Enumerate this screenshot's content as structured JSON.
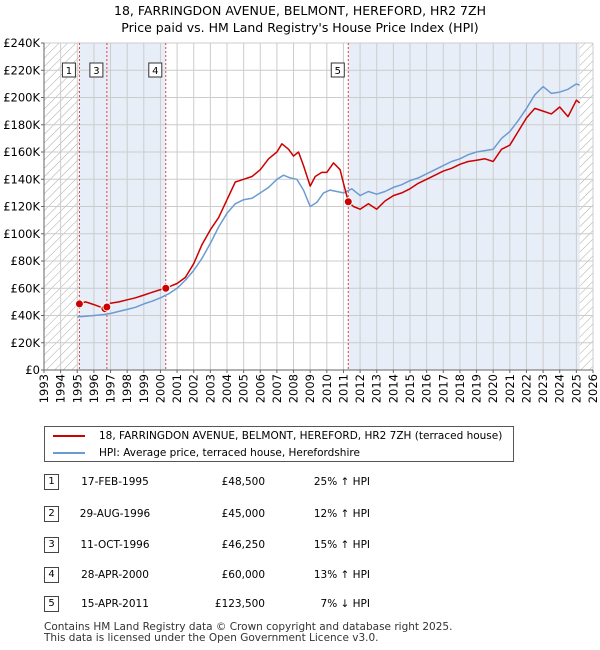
{
  "header": {
    "title_line1": "18, FARRINGDON AVENUE, BELMONT, HEREFORD, HR2 7ZH",
    "title_line2": "Price paid vs. HM Land Registry's House Price Index (HPI)"
  },
  "colors": {
    "price_line": "#cc0000",
    "hpi_line": "#6b9bd2",
    "marker_line": "#dd4444",
    "hatch": "#aaaaaa",
    "shade": "#e8eef8",
    "grid": "#cccccc"
  },
  "chart_data": {
    "type": "line",
    "title": "Price paid vs. HM Land Registry's House Price Index (HPI)",
    "xlim": [
      1993,
      2026
    ],
    "ylim": [
      0,
      240000
    ],
    "x_ticks": [
      "1993",
      "1994",
      "1995",
      "1996",
      "1997",
      "1998",
      "1999",
      "2000",
      "2001",
      "2002",
      "2003",
      "2004",
      "2005",
      "2006",
      "2007",
      "2008",
      "2009",
      "2010",
      "2011",
      "2012",
      "2013",
      "2014",
      "2015",
      "2016",
      "2017",
      "2018",
      "2019",
      "2020",
      "2021",
      "2022",
      "2023",
      "2024",
      "2025",
      "2026"
    ],
    "y_ticks": [
      {
        "value": 0,
        "label": "£0"
      },
      {
        "value": 20000,
        "label": "£20K"
      },
      {
        "value": 40000,
        "label": "£40K"
      },
      {
        "value": 60000,
        "label": "£60K"
      },
      {
        "value": 80000,
        "label": "£80K"
      },
      {
        "value": 100000,
        "label": "£100K"
      },
      {
        "value": 120000,
        "label": "£120K"
      },
      {
        "value": 140000,
        "label": "£140K"
      },
      {
        "value": 160000,
        "label": "£160K"
      },
      {
        "value": 180000,
        "label": "£180K"
      },
      {
        "value": 200000,
        "label": "£200K"
      },
      {
        "value": 220000,
        "label": "£220K"
      },
      {
        "value": 240000,
        "label": "£240K"
      }
    ],
    "hatched_ranges": [
      [
        1993,
        1995.13
      ],
      [
        2025.2,
        2026
      ]
    ],
    "shaded_ranges": [
      [
        1995.13,
        2000.32
      ],
      [
        2011.29,
        2025.2
      ]
    ],
    "series": [
      {
        "name": "18, FARRINGDON AVENUE, BELMONT, HEREFORD, HR2 7ZH (terraced house)",
        "color": "#cc0000",
        "x": [
          1995.13,
          1995.5,
          1996.0,
          1996.66,
          1996.78,
          1997.0,
          1997.5,
          1998.0,
          1998.5,
          1999.0,
          1999.5,
          2000.0,
          2000.32,
          2000.7,
          2001.0,
          2001.5,
          2002.0,
          2002.5,
          2003.0,
          2003.5,
          2004.0,
          2004.5,
          2005.0,
          2005.5,
          2006.0,
          2006.5,
          2007.0,
          2007.3,
          2007.7,
          2008.0,
          2008.3,
          2008.6,
          2009.0,
          2009.3,
          2009.7,
          2010.0,
          2010.4,
          2010.8,
          2011.0,
          2011.29,
          2011.6,
          2012.0,
          2012.5,
          2013.0,
          2013.5,
          2014.0,
          2014.5,
          2015.0,
          2015.5,
          2016.0,
          2016.5,
          2017.0,
          2017.5,
          2018.0,
          2018.5,
          2019.0,
          2019.5,
          2020.0,
          2020.5,
          2021.0,
          2021.5,
          2022.0,
          2022.5,
          2023.0,
          2023.5,
          2024.0,
          2024.5,
          2025.0,
          2025.2
        ],
        "values": [
          48500,
          50000,
          48000,
          45000,
          46250,
          49000,
          50000,
          51500,
          53000,
          55000,
          57000,
          59000,
          60000,
          62000,
          63500,
          68000,
          78000,
          92000,
          103000,
          112000,
          125000,
          138000,
          140000,
          142000,
          147000,
          155000,
          160000,
          166000,
          162000,
          157000,
          160000,
          150000,
          135000,
          142000,
          145000,
          145000,
          152000,
          147000,
          137000,
          123500,
          120000,
          118000,
          122000,
          118000,
          124000,
          128000,
          130000,
          133000,
          137000,
          140000,
          143000,
          146000,
          148000,
          151000,
          153000,
          154000,
          155000,
          153000,
          162000,
          165000,
          175000,
          185000,
          192000,
          190000,
          188000,
          193000,
          186000,
          198000,
          196000
        ]
      },
      {
        "name": "HPI: Average price, terraced house, Herefordshire",
        "color": "#6b9bd2",
        "x": [
          1995.0,
          1995.5,
          1996.0,
          1996.5,
          1997.0,
          1997.5,
          1998.0,
          1998.5,
          1999.0,
          1999.5,
          2000.0,
          2000.5,
          2001.0,
          2001.5,
          2002.0,
          2002.5,
          2003.0,
          2003.5,
          2004.0,
          2004.5,
          2005.0,
          2005.5,
          2006.0,
          2006.5,
          2007.0,
          2007.4,
          2007.8,
          2008.2,
          2008.6,
          2009.0,
          2009.4,
          2009.8,
          2010.2,
          2010.6,
          2011.0,
          2011.5,
          2012.0,
          2012.5,
          2013.0,
          2013.5,
          2014.0,
          2014.5,
          2015.0,
          2015.5,
          2016.0,
          2016.5,
          2017.0,
          2017.5,
          2018.0,
          2018.5,
          2019.0,
          2019.5,
          2020.0,
          2020.5,
          2021.0,
          2021.5,
          2022.0,
          2022.5,
          2023.0,
          2023.5,
          2024.0,
          2024.5,
          2025.0,
          2025.2
        ],
        "values": [
          39000,
          39500,
          40000,
          40500,
          41500,
          43000,
          44500,
          46000,
          48500,
          50500,
          53000,
          56000,
          60000,
          66000,
          73000,
          82000,
          93000,
          105000,
          115000,
          122000,
          125000,
          126000,
          130000,
          134000,
          140000,
          143000,
          141000,
          140000,
          132000,
          120000,
          123000,
          130000,
          132000,
          131000,
          130000,
          133000,
          128000,
          131000,
          129000,
          131000,
          134000,
          136000,
          139000,
          141000,
          144000,
          147000,
          150000,
          153000,
          155000,
          158000,
          160000,
          161000,
          162000,
          170000,
          175000,
          183000,
          192000,
          202000,
          208000,
          203000,
          204000,
          206000,
          210000,
          209000
        ]
      }
    ],
    "sales": [
      {
        "id": "1",
        "x": 1995.13,
        "value": 48500
      },
      {
        "id": "2",
        "x": 1996.66,
        "value": 45000
      },
      {
        "id": "3",
        "x": 1996.78,
        "value": 46250
      },
      {
        "id": "4",
        "x": 2000.32,
        "value": 60000
      },
      {
        "id": "5",
        "x": 2011.29,
        "value": 123500
      }
    ],
    "markers": [
      {
        "label": "1",
        "x": 1995.13
      },
      {
        "label": "3",
        "x": 1996.78
      },
      {
        "label": "4",
        "x": 2000.32
      },
      {
        "label": "5",
        "x": 2011.29
      }
    ]
  },
  "legend": {
    "items": [
      {
        "label": "18, FARRINGDON AVENUE, BELMONT, HEREFORD, HR2 7ZH (terraced house)"
      },
      {
        "label": "HPI: Average price, terraced house, Herefordshire"
      }
    ]
  },
  "transactions": [
    {
      "id": "1",
      "date": "17-FEB-1995",
      "price": "£48,500",
      "hpi": "25% ↑ HPI"
    },
    {
      "id": "2",
      "date": "29-AUG-1996",
      "price": "£45,000",
      "hpi": "12% ↑ HPI"
    },
    {
      "id": "3",
      "date": "11-OCT-1996",
      "price": "£46,250",
      "hpi": "15% ↑ HPI"
    },
    {
      "id": "4",
      "date": "28-APR-2000",
      "price": "£60,000",
      "hpi": "13% ↑ HPI"
    },
    {
      "id": "5",
      "date": "15-APR-2011",
      "price": "£123,500",
      "hpi": "7% ↓ HPI"
    }
  ],
  "footer": {
    "line1": "Contains HM Land Registry data © Crown copyright and database right 2025.",
    "line2": "This data is licensed under the Open Government Licence v3.0."
  }
}
